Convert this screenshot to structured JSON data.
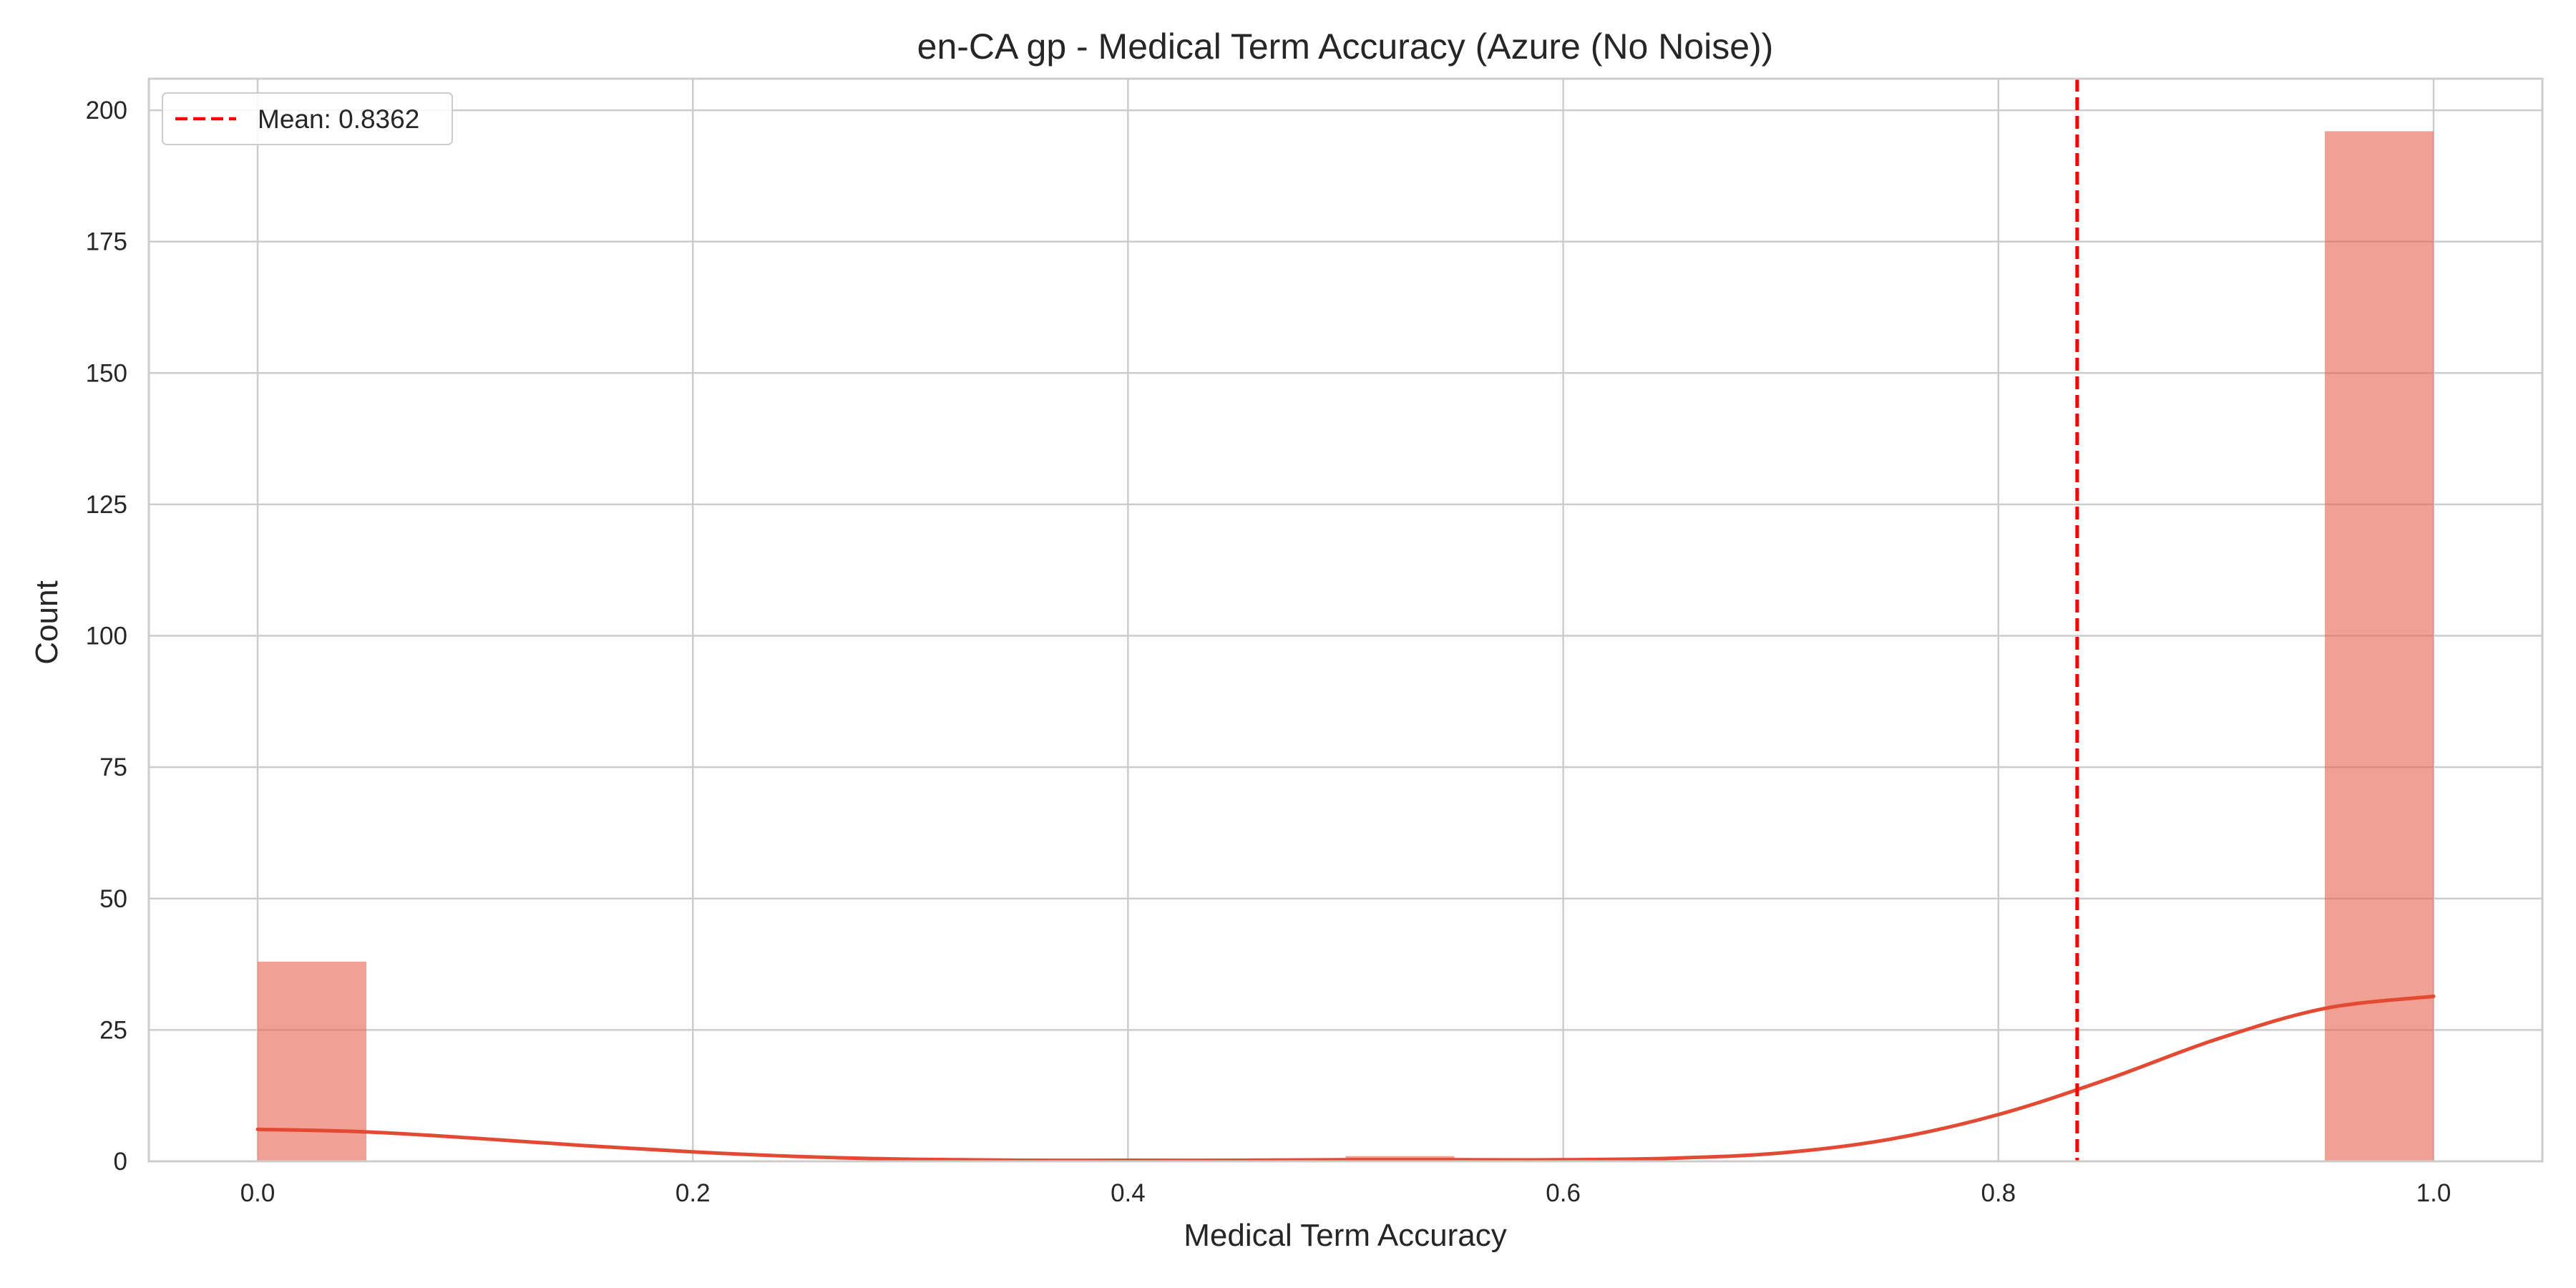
{
  "chart_data": {
    "type": "bar",
    "title": "en-CA gp - Medical Term Accuracy (Azure (No Noise))",
    "xlabel": "Medical Term Accuracy",
    "ylabel": "Count",
    "xlim": [
      -0.05,
      1.05
    ],
    "ylim": [
      0,
      206
    ],
    "x_ticks": [
      0.0,
      0.2,
      0.4,
      0.6,
      0.8,
      1.0
    ],
    "x_tick_labels": [
      "0.0",
      "0.2",
      "0.4",
      "0.6",
      "0.8",
      "1.0"
    ],
    "y_ticks": [
      0,
      25,
      50,
      75,
      100,
      125,
      150,
      175,
      200
    ],
    "y_tick_labels": [
      "0",
      "25",
      "50",
      "75",
      "100",
      "125",
      "150",
      "175",
      "200"
    ],
    "grid": true,
    "bin_width": 0.05,
    "bins": [
      {
        "x0": 0.0,
        "x1": 0.05,
        "count": 38
      },
      {
        "x0": 0.5,
        "x1": 0.55,
        "count": 1
      },
      {
        "x0": 0.95,
        "x1": 1.0,
        "count": 196
      }
    ],
    "kde": {
      "x": [
        0.0,
        0.05,
        0.1,
        0.15,
        0.2,
        0.25,
        0.3,
        0.35,
        0.4,
        0.45,
        0.5,
        0.55,
        0.6,
        0.65,
        0.7,
        0.75,
        0.8,
        0.85,
        0.9,
        0.95,
        1.0
      ],
      "y": [
        6.1,
        5.6,
        4.4,
        3.0,
        1.8,
        0.9,
        0.4,
        0.2,
        0.2,
        0.2,
        0.3,
        0.3,
        0.3,
        0.6,
        1.6,
        4.2,
        8.9,
        15.6,
        23.2,
        29.1,
        31.4
      ]
    },
    "mean": {
      "value": 0.8362,
      "label": "Mean: 0.8362"
    },
    "legend": {
      "placement": "top-left",
      "entries": [
        "Mean: 0.8362"
      ]
    },
    "colors": {
      "bar": "#e8604c",
      "bar_opacity": 0.6,
      "kde": "#e34a33",
      "mean_line": "#ff0000",
      "grid": "#cccccc",
      "axes": "#cccccc",
      "text": "#262626"
    }
  }
}
